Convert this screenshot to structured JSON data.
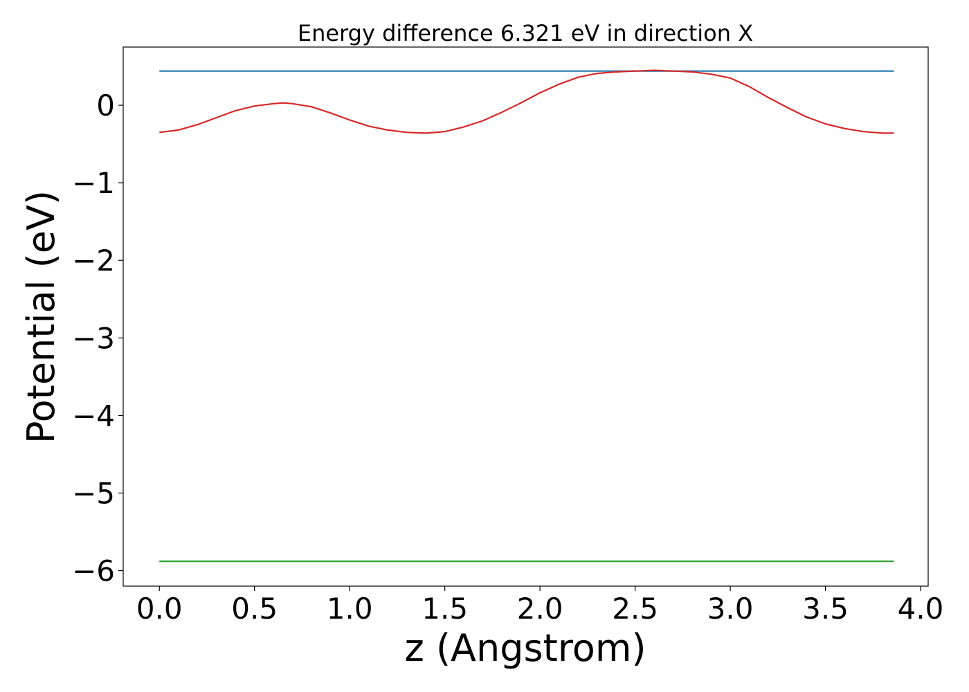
{
  "chart_data": {
    "type": "line",
    "title": "Energy difference 6.321 eV in direction X",
    "xlabel": "z (Angstrom)",
    "ylabel": "Potential (eV)",
    "xlim": [
      -0.19,
      4.04
    ],
    "ylim": [
      -6.2,
      0.75
    ],
    "xticks": [
      0.0,
      0.5,
      1.0,
      1.5,
      2.0,
      2.5,
      3.0,
      3.5,
      4.0
    ],
    "xtick_labels": [
      "0.0",
      "0.5",
      "1.0",
      "1.5",
      "2.0",
      "2.5",
      "3.0",
      "3.5",
      "4.0"
    ],
    "yticks": [
      0,
      -1,
      -2,
      -3,
      -4,
      -5,
      -6
    ],
    "ytick_labels": [
      "0",
      "−1",
      "−2",
      "−3",
      "−4",
      "−5",
      "−6"
    ],
    "grid": false,
    "series": [
      {
        "color": "#1f77b4",
        "x": [
          0.0,
          3.86
        ],
        "y": [
          0.44,
          0.44
        ]
      },
      {
        "color": "#2ca02c",
        "x": [
          0.0,
          3.86
        ],
        "y": [
          -5.88,
          -5.88
        ]
      },
      {
        "color": "#d62728",
        "x": [
          0.0,
          0.1,
          0.2,
          0.3,
          0.4,
          0.5,
          0.6,
          0.65,
          0.7,
          0.8,
          0.9,
          1.0,
          1.1,
          1.2,
          1.3,
          1.4,
          1.5,
          1.6,
          1.7,
          1.8,
          1.9,
          2.0,
          2.1,
          2.2,
          2.3,
          2.4,
          2.5,
          2.6,
          2.7,
          2.8,
          2.9,
          3.0,
          3.1,
          3.2,
          3.3,
          3.4,
          3.5,
          3.6,
          3.7,
          3.8,
          3.86
        ],
        "y": [
          -0.35,
          -0.32,
          -0.25,
          -0.16,
          -0.07,
          -0.01,
          0.02,
          0.03,
          0.02,
          -0.02,
          -0.1,
          -0.19,
          -0.27,
          -0.32,
          -0.35,
          -0.36,
          -0.34,
          -0.28,
          -0.2,
          -0.09,
          0.03,
          0.16,
          0.27,
          0.36,
          0.41,
          0.43,
          0.44,
          0.45,
          0.44,
          0.43,
          0.4,
          0.35,
          0.24,
          0.1,
          -0.03,
          -0.15,
          -0.24,
          -0.3,
          -0.34,
          -0.36,
          -0.36
        ]
      }
    ]
  }
}
